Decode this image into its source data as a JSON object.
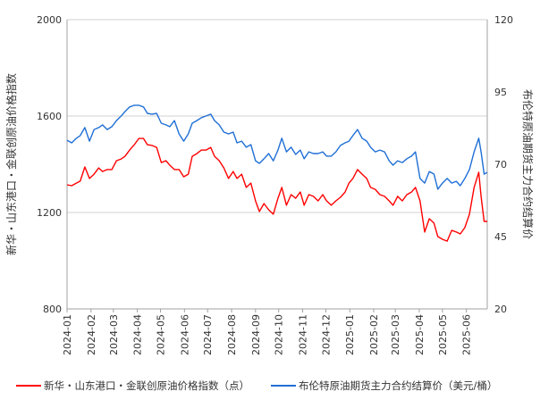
{
  "chart_data": {
    "type": "line",
    "title": "",
    "xlabel": "",
    "ylabel_left": "新华・山东港口・金联创原油价格指数",
    "ylabel_right": "布伦特原油期货主力合约结算价",
    "ylim_left": [
      800,
      2000
    ],
    "yticks_left": [
      800,
      1200,
      1600,
      2000
    ],
    "ylim_right": [
      20,
      120
    ],
    "yticks_right": [
      20,
      45,
      70,
      95,
      120
    ],
    "xlim": [
      "2024-01-01",
      "2025-06-28"
    ],
    "xticks": [
      "2024-01",
      "2024-02",
      "2024-03",
      "2024-04",
      "2024-05",
      "2024-06",
      "2024-07",
      "2024-08",
      "2024-09",
      "2024-10",
      "2024-11",
      "2024-12",
      "2025-01",
      "2025-02",
      "2025-03",
      "2025-04",
      "2025-05",
      "2025-06"
    ],
    "grid": true,
    "legend_position": "bottom",
    "x": [
      "2024-01-01",
      "2024-01-07",
      "2024-01-13",
      "2024-01-18",
      "2024-01-24",
      "2024-01-30",
      "2024-02-05",
      "2024-02-11",
      "2024-02-16",
      "2024-02-22",
      "2024-02-28",
      "2024-03-05",
      "2024-03-11",
      "2024-03-16",
      "2024-03-22",
      "2024-03-28",
      "2024-04-03",
      "2024-04-09",
      "2024-04-14",
      "2024-04-20",
      "2024-04-26",
      "2024-05-02",
      "2024-05-08",
      "2024-05-13",
      "2024-05-19",
      "2024-05-25",
      "2024-05-31",
      "2024-06-06",
      "2024-06-11",
      "2024-06-17",
      "2024-06-23",
      "2024-06-29",
      "2024-07-05",
      "2024-07-10",
      "2024-07-16",
      "2024-07-22",
      "2024-07-28",
      "2024-08-03",
      "2024-08-08",
      "2024-08-14",
      "2024-08-20",
      "2024-08-26",
      "2024-09-01",
      "2024-09-06",
      "2024-09-12",
      "2024-09-18",
      "2024-09-24",
      "2024-09-30",
      "2024-10-05",
      "2024-10-11",
      "2024-10-17",
      "2024-10-23",
      "2024-10-29",
      "2024-11-03",
      "2024-11-09",
      "2024-11-15",
      "2024-11-21",
      "2024-11-27",
      "2024-12-02",
      "2024-12-08",
      "2024-12-14",
      "2024-12-20",
      "2024-12-26",
      "2024-12-31",
      "2025-01-05",
      "2025-01-11",
      "2025-01-17",
      "2025-01-23",
      "2025-01-28",
      "2025-02-03",
      "2025-02-09",
      "2025-02-15",
      "2025-02-21",
      "2025-02-26",
      "2025-03-04",
      "2025-03-10",
      "2025-03-16",
      "2025-03-22",
      "2025-03-27",
      "2025-04-02",
      "2025-04-08",
      "2025-04-14",
      "2025-04-20",
      "2025-04-25",
      "2025-05-01",
      "2025-05-07",
      "2025-05-13",
      "2025-05-19",
      "2025-05-24",
      "2025-05-30",
      "2025-06-05",
      "2025-06-11",
      "2025-06-17",
      "2025-06-20",
      "2025-06-24",
      "2025-06-28"
    ],
    "series": [
      {
        "name": "新华・山东港口・金联创原油价格指数（点）",
        "axis": "left",
        "color": "#ff0000",
        "values": [
          1315,
          1311,
          1322,
          1330,
          1389,
          1341,
          1359,
          1385,
          1370,
          1378,
          1378,
          1415,
          1422,
          1433,
          1459,
          1481,
          1507,
          1507,
          1481,
          1478,
          1470,
          1407,
          1415,
          1396,
          1378,
          1378,
          1348,
          1359,
          1433,
          1444,
          1459,
          1459,
          1470,
          1433,
          1415,
          1385,
          1341,
          1370,
          1341,
          1359,
          1304,
          1322,
          1248,
          1204,
          1237,
          1211,
          1193,
          1259,
          1304,
          1230,
          1274,
          1259,
          1285,
          1230,
          1274,
          1267,
          1248,
          1274,
          1248,
          1230,
          1248,
          1263,
          1285,
          1322,
          1341,
          1378,
          1359,
          1341,
          1304,
          1296,
          1274,
          1267,
          1248,
          1230,
          1267,
          1248,
          1274,
          1285,
          1304,
          1248,
          1119,
          1174,
          1156,
          1100,
          1089,
          1081,
          1126,
          1119,
          1111,
          1137,
          1193,
          1304,
          1367,
          1267,
          1163,
          1163
        ]
      },
      {
        "name": "布伦特原油期货主力合约结算价（美元/桶）",
        "axis": "right",
        "color": "#1f6fd6",
        "values": [
          78.3,
          77.4,
          79.0,
          79.9,
          82.7,
          78.0,
          82.0,
          82.7,
          83.6,
          82.0,
          83.0,
          85.1,
          86.7,
          88.2,
          89.8,
          90.4,
          90.4,
          89.8,
          87.6,
          87.3,
          87.6,
          84.2,
          83.6,
          83.0,
          85.1,
          80.5,
          78.0,
          80.5,
          84.2,
          85.1,
          86.1,
          86.7,
          87.3,
          85.1,
          83.6,
          81.1,
          80.5,
          81.1,
          77.4,
          78.0,
          75.9,
          76.8,
          71.2,
          70.3,
          71.9,
          73.7,
          71.2,
          74.9,
          79.0,
          74.3,
          75.9,
          73.4,
          74.9,
          71.9,
          74.3,
          73.7,
          73.7,
          74.3,
          72.8,
          72.8,
          74.3,
          76.5,
          77.4,
          78.0,
          79.9,
          82.0,
          79.0,
          78.0,
          75.9,
          74.3,
          74.9,
          74.3,
          71.2,
          69.7,
          71.2,
          70.6,
          71.9,
          72.8,
          74.3,
          65.1,
          63.5,
          67.5,
          66.6,
          61.4,
          63.5,
          65.1,
          63.5,
          64.1,
          62.6,
          65.1,
          68.2,
          74.3,
          79.0,
          74.3,
          66.6,
          67.2
        ]
      }
    ]
  }
}
